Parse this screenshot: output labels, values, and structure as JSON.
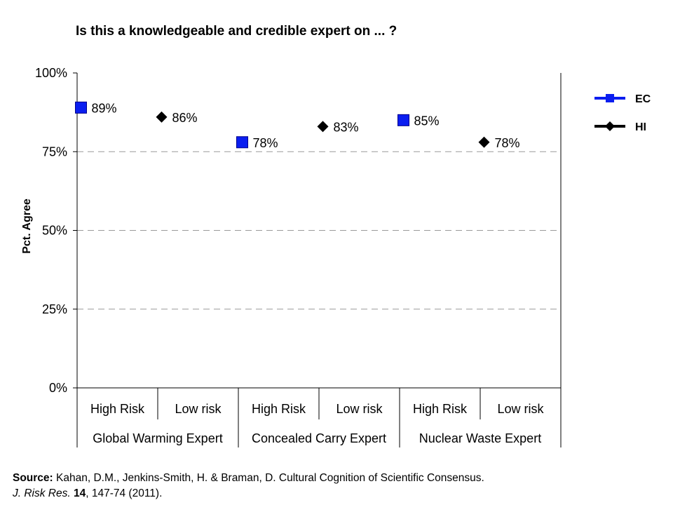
{
  "chart_data": {
    "type": "scatter",
    "title": "Is this a knowledgeable and credible  expert on ... ?",
    "ylabel": "Pct. Agree",
    "ylim": [
      0,
      100
    ],
    "yticks": [
      0,
      25,
      50,
      75,
      100
    ],
    "ytick_labels": [
      "0%",
      "25%",
      "50%",
      "75%",
      "100%"
    ],
    "grid": "horizontal dashed",
    "legend_position": "right",
    "categories": [
      "High Risk",
      "Low risk",
      "High Risk",
      "Low risk",
      "High Risk",
      "Low risk"
    ],
    "groups": [
      {
        "label": "Global Warming Expert",
        "categories": [
          0,
          1
        ]
      },
      {
        "label": "Concealed Carry Expert",
        "categories": [
          2,
          3
        ]
      },
      {
        "label": "Nuclear Waste Expert",
        "categories": [
          4,
          5
        ]
      }
    ],
    "series": [
      {
        "name": "EC",
        "marker": "square",
        "color": "#0a1ef0",
        "points": [
          {
            "category": 0,
            "value": 89,
            "label": "89%"
          },
          {
            "category": 2,
            "value": 78,
            "label": "78%"
          },
          {
            "category": 4,
            "value": 85,
            "label": "85%"
          }
        ]
      },
      {
        "name": "HI",
        "marker": "diamond",
        "color": "#000000",
        "points": [
          {
            "category": 1,
            "value": 86,
            "label": "86%"
          },
          {
            "category": 3,
            "value": 83,
            "label": "83%"
          },
          {
            "category": 5,
            "value": 78,
            "label": "78%"
          }
        ]
      }
    ]
  },
  "source": {
    "bold_label": "Source:",
    "line1": " Kahan, D.M., Jenkins-Smith, H. & Braman, D. Cultural Cognition of Scientific Consensus.",
    "journal": "J. Risk Res.",
    "volume": "14",
    "pages": ", 147-74 (2011)."
  }
}
